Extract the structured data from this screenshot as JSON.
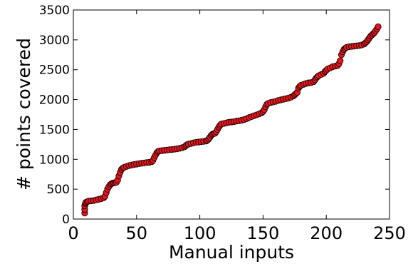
{
  "chart_data": {
    "type": "scatter",
    "xlabel": "Manual inputs",
    "ylabel": "# points covered",
    "xlim": [
      0,
      250
    ],
    "ylim": [
      0,
      3500
    ],
    "xticks": [
      "0",
      "50",
      "100",
      "150",
      "200",
      "250"
    ],
    "yticks": [
      "0",
      "500",
      "1000",
      "1500",
      "2000",
      "2500",
      "3000",
      "3500"
    ],
    "grid": false,
    "marker_color": "#e8141b",
    "marker_edge_color": "#000000",
    "points": [
      [
        9,
        100
      ],
      [
        9,
        160
      ],
      [
        9,
        220
      ],
      [
        9.5,
        260
      ],
      [
        10,
        280
      ],
      [
        11,
        290
      ],
      [
        12,
        300
      ],
      [
        14,
        305
      ],
      [
        16,
        310
      ],
      [
        18,
        320
      ],
      [
        20,
        330
      ],
      [
        22,
        340
      ],
      [
        24,
        355
      ],
      [
        25,
        380
      ],
      [
        26,
        440
      ],
      [
        27,
        500
      ],
      [
        28,
        540
      ],
      [
        29,
        570
      ],
      [
        30,
        590
      ],
      [
        31,
        600
      ],
      [
        32,
        605
      ],
      [
        33,
        610
      ],
      [
        34,
        615
      ],
      [
        35,
        650
      ],
      [
        36,
        720
      ],
      [
        37,
        780
      ],
      [
        38,
        830
      ],
      [
        39,
        850
      ],
      [
        40,
        865
      ],
      [
        42,
        880
      ],
      [
        44,
        895
      ],
      [
        46,
        905
      ],
      [
        48,
        912
      ],
      [
        50,
        920
      ],
      [
        52,
        928
      ],
      [
        54,
        935
      ],
      [
        56,
        940
      ],
      [
        58,
        945
      ],
      [
        60,
        950
      ],
      [
        62,
        960
      ],
      [
        63,
        985
      ],
      [
        64,
        1030
      ],
      [
        65,
        1070
      ],
      [
        66,
        1110
      ],
      [
        67,
        1130
      ],
      [
        68,
        1140
      ],
      [
        70,
        1145
      ],
      [
        72,
        1150
      ],
      [
        74,
        1155
      ],
      [
        76,
        1160
      ],
      [
        78,
        1165
      ],
      [
        80,
        1170
      ],
      [
        82,
        1175
      ],
      [
        84,
        1185
      ],
      [
        86,
        1195
      ],
      [
        88,
        1210
      ],
      [
        89,
        1230
      ],
      [
        90,
        1245
      ],
      [
        91,
        1255
      ],
      [
        93,
        1265
      ],
      [
        95,
        1275
      ],
      [
        97,
        1285
      ],
      [
        99,
        1290
      ],
      [
        101,
        1295
      ],
      [
        103,
        1300
      ],
      [
        105,
        1305
      ],
      [
        106,
        1320
      ],
      [
        107,
        1340
      ],
      [
        108,
        1370
      ],
      [
        109,
        1400
      ],
      [
        110,
        1420
      ],
      [
        111,
        1430
      ],
      [
        112,
        1435
      ],
      [
        113,
        1460
      ],
      [
        114,
        1500
      ],
      [
        115,
        1540
      ],
      [
        116,
        1570
      ],
      [
        117,
        1590
      ],
      [
        119,
        1600
      ],
      [
        121,
        1610
      ],
      [
        123,
        1620
      ],
      [
        125,
        1625
      ],
      [
        127,
        1630
      ],
      [
        129,
        1640
      ],
      [
        131,
        1645
      ],
      [
        133,
        1655
      ],
      [
        135,
        1665
      ],
      [
        137,
        1680
      ],
      [
        139,
        1700
      ],
      [
        141,
        1715
      ],
      [
        143,
        1730
      ],
      [
        145,
        1745
      ],
      [
        147,
        1760
      ],
      [
        149,
        1780
      ],
      [
        150,
        1800
      ],
      [
        151,
        1830
      ],
      [
        152,
        1880
      ],
      [
        153,
        1920
      ],
      [
        154,
        1935
      ],
      [
        156,
        1950
      ],
      [
        158,
        1960
      ],
      [
        160,
        1970
      ],
      [
        162,
        1985
      ],
      [
        164,
        1995
      ],
      [
        166,
        2005
      ],
      [
        168,
        2015
      ],
      [
        170,
        2025
      ],
      [
        172,
        2040
      ],
      [
        174,
        2060
      ],
      [
        175,
        2080
      ],
      [
        176,
        2100
      ],
      [
        177,
        2120
      ],
      [
        178,
        2190
      ],
      [
        179,
        2220
      ],
      [
        180,
        2240
      ],
      [
        182,
        2255
      ],
      [
        184,
        2270
      ],
      [
        186,
        2280
      ],
      [
        188,
        2285
      ],
      [
        190,
        2300
      ],
      [
        191,
        2330
      ],
      [
        192,
        2360
      ],
      [
        193,
        2380
      ],
      [
        194,
        2400
      ],
      [
        196,
        2420
      ],
      [
        198,
        2440
      ],
      [
        199,
        2470
      ],
      [
        200,
        2490
      ],
      [
        201,
        2510
      ],
      [
        203,
        2530
      ],
      [
        205,
        2550
      ],
      [
        207,
        2560
      ],
      [
        209,
        2570
      ],
      [
        210,
        2600
      ],
      [
        211,
        2650
      ],
      [
        212,
        2750
      ],
      [
        213,
        2800
      ],
      [
        214,
        2840
      ],
      [
        215,
        2860
      ],
      [
        216,
        2875
      ],
      [
        218,
        2885
      ],
      [
        220,
        2890
      ],
      [
        222,
        2895
      ],
      [
        224,
        2900
      ],
      [
        226,
        2905
      ],
      [
        228,
        2915
      ],
      [
        230,
        2930
      ],
      [
        231,
        2950
      ],
      [
        232,
        2970
      ],
      [
        233,
        3000
      ],
      [
        234,
        3030
      ],
      [
        235,
        3060
      ],
      [
        236,
        3080
      ],
      [
        237,
        3100
      ],
      [
        238,
        3120
      ],
      [
        239,
        3150
      ],
      [
        240,
        3180
      ],
      [
        241,
        3220
      ]
    ]
  }
}
